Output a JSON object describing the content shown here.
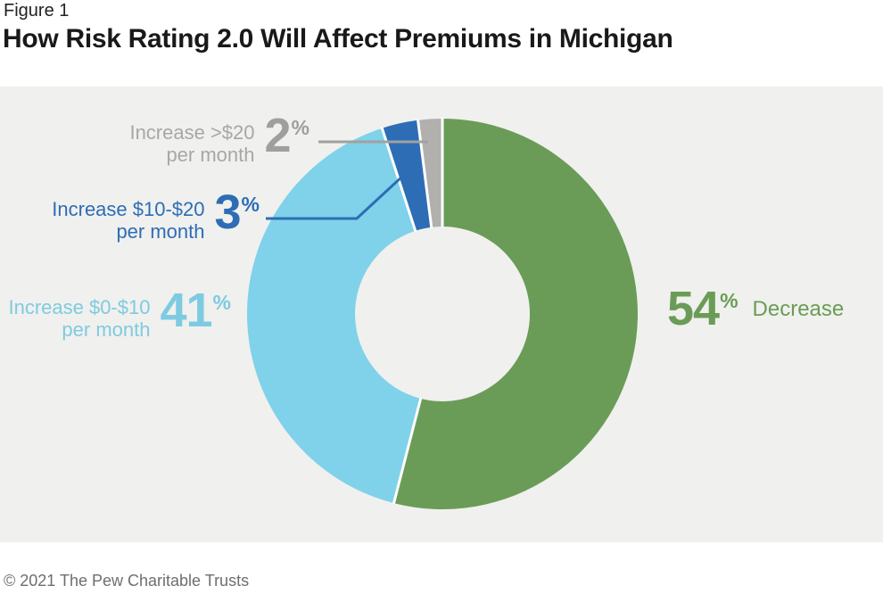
{
  "figure_label": "Figure 1",
  "title": "How Risk Rating 2.0 Will Affect Premiums in Michigan",
  "footer": "© 2021 The Pew Charitable Trusts",
  "colors": {
    "page_bg": "#ffffff",
    "panel_bg": "#f0f0ee",
    "title_text": "#191919",
    "footer_text": "#6e6e6e",
    "green": "#6b9c57",
    "light_blue": "#7fd2e9",
    "light_blue_text": "#7ecbe1",
    "dark_blue": "#2d6db5",
    "gray_slice": "#b1b0af",
    "gray_label_text": "#a7a7a7",
    "leader_gray": "#a2a1a0",
    "separator": "#ffffff"
  },
  "chart_data": {
    "type": "pie",
    "subtype": "donut",
    "title": "How Risk Rating 2.0 Will Affect Premiums in Michigan",
    "unit": "%",
    "start_angle_deg": 0,
    "direction": "clockwise",
    "inner_radius_ratio": 0.45,
    "legend_position": "callout-labels",
    "slices": [
      {
        "label": "Decrease",
        "value": 54,
        "color": "#6b9c57"
      },
      {
        "label": "Increase $0-$10 per month",
        "value": 41,
        "color": "#7fd2e9"
      },
      {
        "label": "Increase $10-$20 per month",
        "value": 3,
        "color": "#2d6db5"
      },
      {
        "label": "Increase >$20 per month",
        "value": 2,
        "color": "#b1b0af"
      }
    ]
  },
  "callouts": {
    "gray": {
      "line1": "Increase >$20",
      "line2": "per month",
      "value": "2",
      "pct": "%"
    },
    "dark_blue": {
      "line1": "Increase $10-$20",
      "line2": "per month",
      "value": "3",
      "pct": "%"
    },
    "light_blue": {
      "line1": "Increase $0-$10",
      "line2": "per month",
      "value": "41",
      "pct": "%"
    },
    "green": {
      "value": "54",
      "pct": "%",
      "label": "Decrease"
    }
  }
}
